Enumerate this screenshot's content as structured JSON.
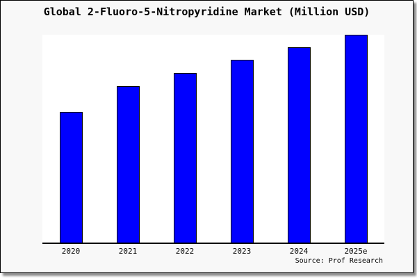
{
  "window": {
    "card_bg": "#f8f8f8",
    "border_color": "#000000",
    "shadow_color": "#8c8c8c",
    "plot_bg": "#ffffff"
  },
  "chart_data": {
    "type": "bar",
    "title": "Global 2-Fluoro-5-Nitropyridine Market (Million USD)",
    "categories": [
      "2020",
      "2021",
      "2022",
      "2023",
      "2024",
      "2025e"
    ],
    "values": [
      62.9,
      75.3,
      81.6,
      87.9,
      94.0,
      100
    ],
    "value_scale": "relative, percent of tallest bar (no y-axis scale shown in image)",
    "ylim": [
      0,
      100.7
    ],
    "xlabel": "",
    "ylabel": "",
    "grid": false,
    "legend": false,
    "bar_color": "#0000ff",
    "bar_border_color": "#000000",
    "axis_line_color": "#000000"
  },
  "footer": {
    "source_label": "Source: Prof Research"
  }
}
